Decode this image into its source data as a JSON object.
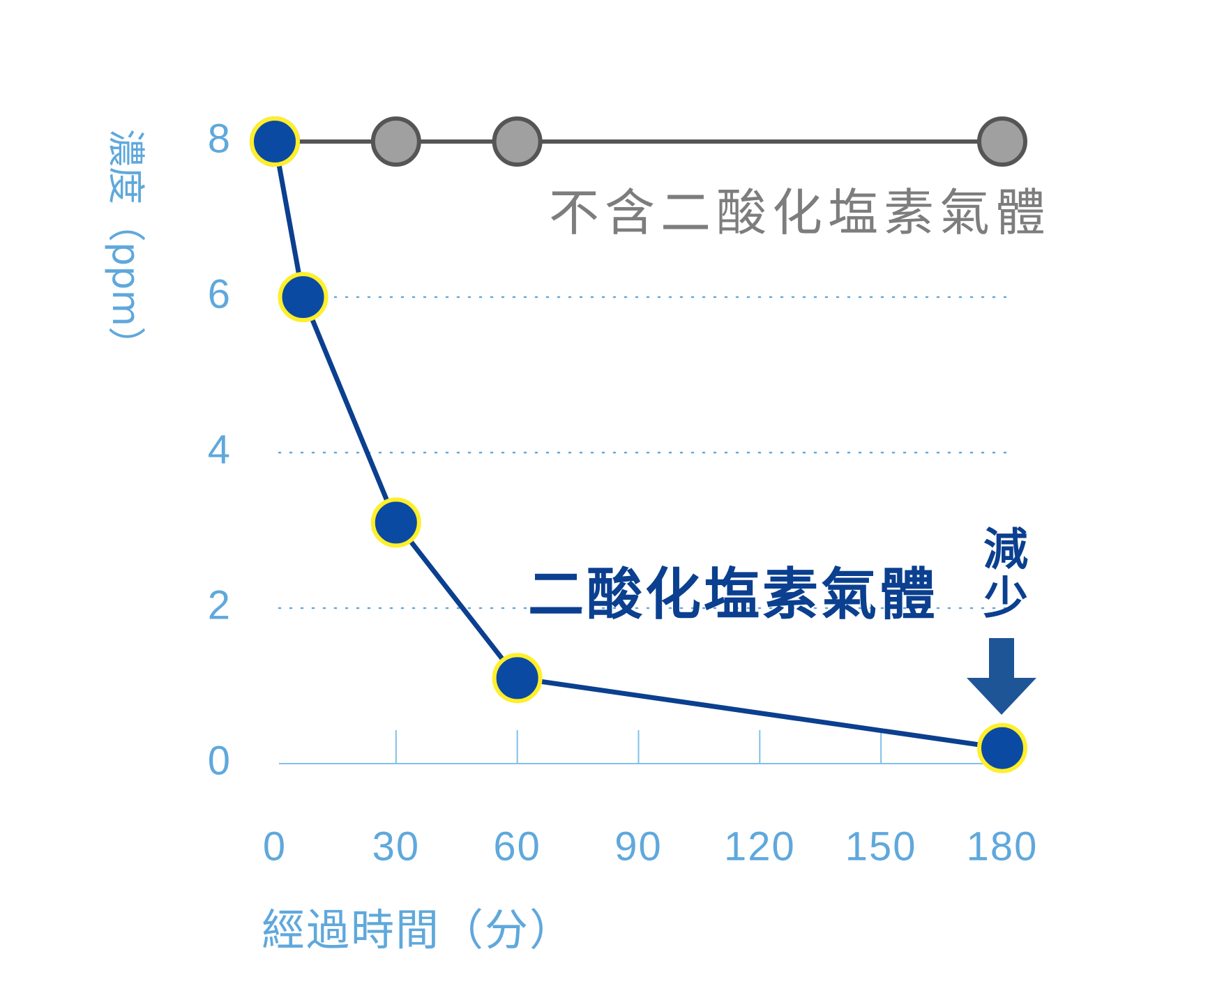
{
  "chart_data": {
    "type": "line",
    "xlabel": "經過時間（分）",
    "ylabel": "濃度（ppm）",
    "x_ticks": [
      "0",
      "30",
      "60",
      "90",
      "120",
      "150",
      "180"
    ],
    "y_ticks": [
      "0",
      "2",
      "4",
      "6",
      "8"
    ],
    "xlim": [
      0,
      180
    ],
    "ylim": [
      0,
      8
    ],
    "grid": "dotted horizontal",
    "series": [
      {
        "name": "不含二酸化塩素氣體",
        "color": "#555555",
        "marker_color": "#a0a0a0",
        "x": [
          0,
          30,
          60,
          180
        ],
        "y": [
          8,
          8,
          8,
          8
        ]
      },
      {
        "name": "二酸化塩素氣體",
        "color": "#0b3f8f",
        "marker_color": "#0b4aa2",
        "marker_edge": "#ffef2a",
        "x": [
          0,
          7,
          30,
          60,
          180
        ],
        "y": [
          8,
          6,
          3.1,
          1.1,
          0.2
        ]
      }
    ],
    "annotation": {
      "text_1": "減",
      "text_2": "少",
      "arrow": "down-arrow",
      "color": "#1e5597"
    }
  }
}
